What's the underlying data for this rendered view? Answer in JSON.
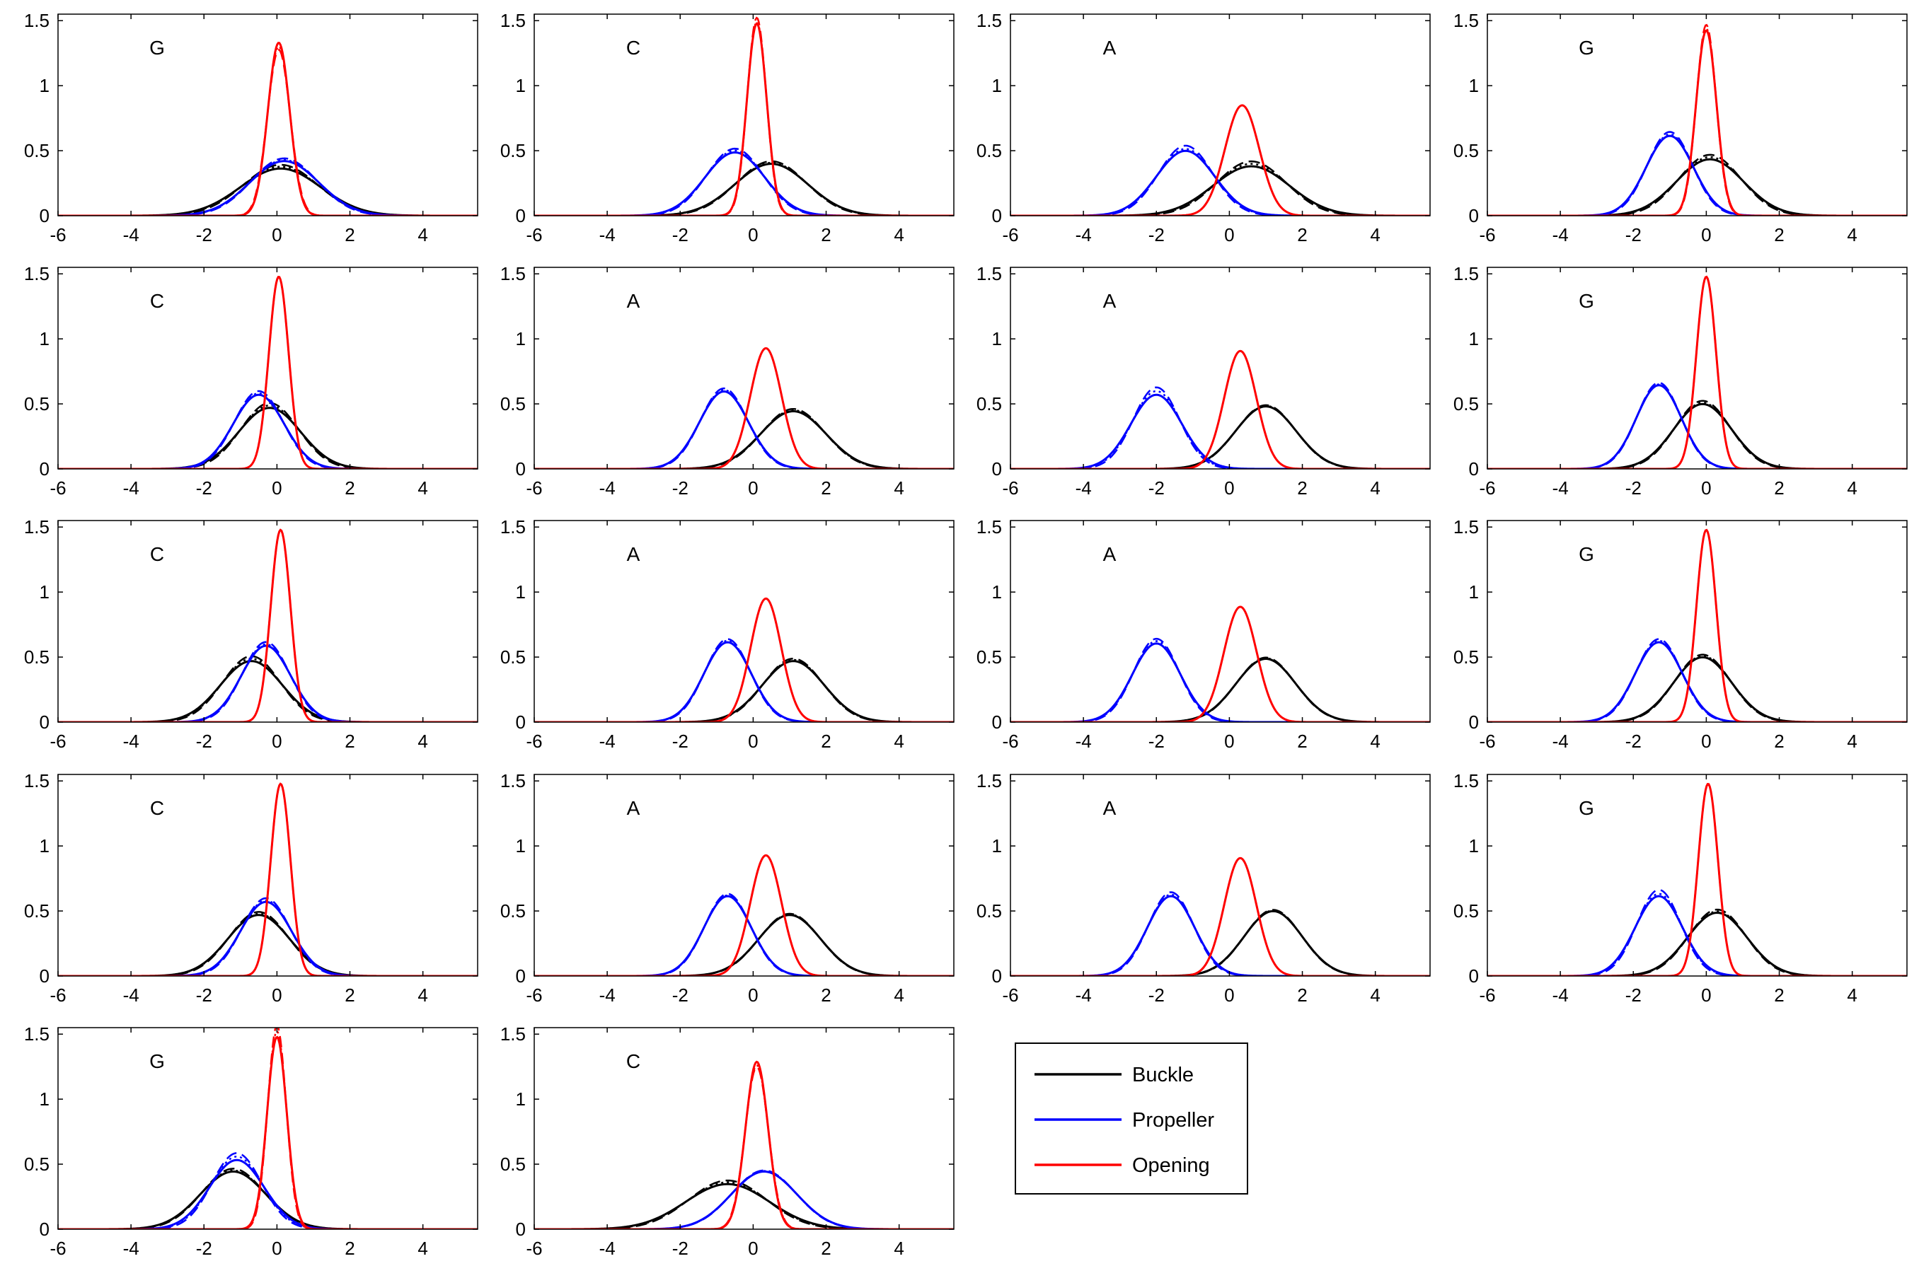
{
  "colors": {
    "buckle": "#000000",
    "propeller": "#0000ff",
    "opening": "#ff0000"
  },
  "legend": {
    "items": [
      {
        "label": "Buckle",
        "color": "#000000"
      },
      {
        "label": "Propeller",
        "color": "#0000ff"
      },
      {
        "label": "Opening",
        "color": "#ff0000"
      }
    ]
  },
  "chart_data": [
    {
      "type": "line",
      "label": "G",
      "xlim": [
        -6,
        5.5
      ],
      "ylim": [
        0,
        1.55
      ],
      "xticks": [
        -6,
        -4,
        -2,
        0,
        2,
        4
      ],
      "yticks": [
        0,
        0.5,
        1,
        1.5
      ],
      "series": [
        {
          "name": "Buckle",
          "mean": 0.1,
          "sd": 1.1,
          "variants": [
            1.0,
            1.08,
            1.04
          ]
        },
        {
          "name": "Propeller",
          "mean": 0.2,
          "sd": 0.95,
          "variants": [
            1.0,
            1.05,
            1.02
          ]
        },
        {
          "name": "Opening",
          "mean": 0.05,
          "sd": 0.3,
          "variants": [
            1.0,
            0.96,
            0.98
          ]
        }
      ]
    },
    {
      "type": "line",
      "label": "C",
      "xlim": [
        -6,
        5.5
      ],
      "ylim": [
        0,
        1.55
      ],
      "xticks": [
        -6,
        -4,
        -2,
        0,
        2,
        4
      ],
      "yticks": [
        0,
        0.5,
        1,
        1.5
      ],
      "series": [
        {
          "name": "Buckle",
          "mean": 0.5,
          "sd": 1.0,
          "variants": [
            1.0,
            1.05,
            1.02
          ]
        },
        {
          "name": "Propeller",
          "mean": -0.5,
          "sd": 0.82,
          "variants": [
            1.0,
            1.06,
            1.03
          ]
        },
        {
          "name": "Opening",
          "mean": 0.1,
          "sd": 0.27,
          "variants": [
            1.0,
            1.03,
            1.01
          ]
        }
      ]
    },
    {
      "type": "line",
      "label": "A",
      "xlim": [
        -6,
        5.5
      ],
      "ylim": [
        0,
        1.55
      ],
      "xticks": [
        -6,
        -4,
        -2,
        0,
        2,
        4
      ],
      "yticks": [
        0,
        0.5,
        1,
        1.5
      ],
      "series": [
        {
          "name": "Buckle",
          "mean": 0.6,
          "sd": 1.05,
          "variants": [
            1.0,
            1.1,
            1.05
          ]
        },
        {
          "name": "Propeller",
          "mean": -1.2,
          "sd": 0.8,
          "variants": [
            1.0,
            1.08,
            1.03
          ]
        },
        {
          "name": "Opening",
          "mean": 0.35,
          "sd": 0.47,
          "variants": [
            1.0,
            1.0,
            1.0
          ]
        }
      ]
    },
    {
      "type": "line",
      "label": "G",
      "xlim": [
        -6,
        5.5
      ],
      "ylim": [
        0,
        1.55
      ],
      "xticks": [
        -6,
        -4,
        -2,
        0,
        2,
        4
      ],
      "yticks": [
        0,
        0.5,
        1,
        1.5
      ],
      "series": [
        {
          "name": "Buckle",
          "mean": 0.1,
          "sd": 0.92,
          "variants": [
            1.0,
            1.08,
            1.04
          ]
        },
        {
          "name": "Propeller",
          "mean": -1.0,
          "sd": 0.65,
          "variants": [
            1.0,
            1.05,
            1.02
          ]
        },
        {
          "name": "Opening",
          "mean": 0.0,
          "sd": 0.28,
          "variants": [
            1.0,
            1.03,
            1.01
          ]
        }
      ]
    },
    {
      "type": "line",
      "label": "C",
      "xlim": [
        -6,
        5.5
      ],
      "ylim": [
        0,
        1.55
      ],
      "xticks": [
        -6,
        -4,
        -2,
        0,
        2,
        4
      ],
      "yticks": [
        0,
        0.5,
        1,
        1.5
      ],
      "series": [
        {
          "name": "Buckle",
          "mean": -0.2,
          "sd": 0.85,
          "variants": [
            1.0,
            1.08,
            1.04
          ]
        },
        {
          "name": "Propeller",
          "mean": -0.5,
          "sd": 0.7,
          "variants": [
            1.0,
            1.05,
            1.02
          ]
        },
        {
          "name": "Opening",
          "mean": 0.05,
          "sd": 0.27,
          "variants": [
            1.0,
            1.0,
            1.0
          ]
        }
      ]
    },
    {
      "type": "line",
      "label": "A",
      "xlim": [
        -6,
        5.5
      ],
      "ylim": [
        0,
        1.55
      ],
      "xticks": [
        -6,
        -4,
        -2,
        0,
        2,
        4
      ],
      "yticks": [
        0,
        0.5,
        1,
        1.5
      ],
      "series": [
        {
          "name": "Buckle",
          "mean": 1.1,
          "sd": 0.9,
          "variants": [
            1.0,
            1.04,
            1.02
          ]
        },
        {
          "name": "Propeller",
          "mean": -0.8,
          "sd": 0.67,
          "variants": [
            1.0,
            1.04,
            1.02
          ]
        },
        {
          "name": "Opening",
          "mean": 0.35,
          "sd": 0.43,
          "variants": [
            1.0,
            1.0,
            1.0
          ]
        }
      ]
    },
    {
      "type": "line",
      "label": "A",
      "xlim": [
        -6,
        5.5
      ],
      "ylim": [
        0,
        1.55
      ],
      "xticks": [
        -6,
        -4,
        -2,
        0,
        2,
        4
      ],
      "yticks": [
        0,
        0.5,
        1,
        1.5
      ],
      "series": [
        {
          "name": "Buckle",
          "mean": 1.0,
          "sd": 0.83,
          "variants": [
            1.0,
            1.02,
            1.01
          ]
        },
        {
          "name": "Propeller",
          "mean": -2.0,
          "sd": 0.7,
          "variants": [
            1.0,
            1.1,
            1.05
          ]
        },
        {
          "name": "Opening",
          "mean": 0.3,
          "sd": 0.44,
          "variants": [
            1.0,
            1.0,
            1.0
          ]
        }
      ]
    },
    {
      "type": "line",
      "label": "G",
      "xlim": [
        -6,
        5.5
      ],
      "ylim": [
        0,
        1.55
      ],
      "xticks": [
        -6,
        -4,
        -2,
        0,
        2,
        4
      ],
      "yticks": [
        0,
        0.5,
        1,
        1.5
      ],
      "series": [
        {
          "name": "Buckle",
          "mean": -0.1,
          "sd": 0.8,
          "variants": [
            1.0,
            1.05,
            1.02
          ]
        },
        {
          "name": "Propeller",
          "mean": -1.3,
          "sd": 0.62,
          "variants": [
            1.0,
            1.03,
            1.01
          ]
        },
        {
          "name": "Opening",
          "mean": 0.0,
          "sd": 0.27,
          "variants": [
            1.0,
            1.0,
            1.0
          ]
        }
      ]
    },
    {
      "type": "line",
      "label": "C",
      "xlim": [
        -6,
        5.5
      ],
      "ylim": [
        0,
        1.55
      ],
      "xticks": [
        -6,
        -4,
        -2,
        0,
        2,
        4
      ],
      "yticks": [
        0,
        0.5,
        1,
        1.5
      ],
      "series": [
        {
          "name": "Buckle",
          "mean": -0.7,
          "sd": 0.85,
          "variants": [
            1.0,
            1.08,
            1.04
          ]
        },
        {
          "name": "Propeller",
          "mean": -0.3,
          "sd": 0.68,
          "variants": [
            1.0,
            1.05,
            1.02
          ]
        },
        {
          "name": "Opening",
          "mean": 0.1,
          "sd": 0.27,
          "variants": [
            1.0,
            1.0,
            1.0
          ]
        }
      ]
    },
    {
      "type": "line",
      "label": "A",
      "xlim": [
        -6,
        5.5
      ],
      "ylim": [
        0,
        1.55
      ],
      "xticks": [
        -6,
        -4,
        -2,
        0,
        2,
        4
      ],
      "yticks": [
        0,
        0.5,
        1,
        1.5
      ],
      "series": [
        {
          "name": "Buckle",
          "mean": 1.1,
          "sd": 0.85,
          "variants": [
            1.0,
            1.04,
            1.02
          ]
        },
        {
          "name": "Propeller",
          "mean": -0.7,
          "sd": 0.65,
          "variants": [
            1.0,
            1.04,
            1.02
          ]
        },
        {
          "name": "Opening",
          "mean": 0.35,
          "sd": 0.42,
          "variants": [
            1.0,
            1.0,
            1.0
          ]
        }
      ]
    },
    {
      "type": "line",
      "label": "A",
      "xlim": [
        -6,
        5.5
      ],
      "ylim": [
        0,
        1.55
      ],
      "xticks": [
        -6,
        -4,
        -2,
        0,
        2,
        4
      ],
      "yticks": [
        0,
        0.5,
        1,
        1.5
      ],
      "series": [
        {
          "name": "Buckle",
          "mean": 1.0,
          "sd": 0.82,
          "variants": [
            1.0,
            1.02,
            1.01
          ]
        },
        {
          "name": "Propeller",
          "mean": -2.0,
          "sd": 0.66,
          "variants": [
            1.0,
            1.06,
            1.03
          ]
        },
        {
          "name": "Opening",
          "mean": 0.3,
          "sd": 0.45,
          "variants": [
            1.0,
            1.0,
            1.0
          ]
        }
      ]
    },
    {
      "type": "line",
      "label": "G",
      "xlim": [
        -6,
        5.5
      ],
      "ylim": [
        0,
        1.55
      ],
      "xticks": [
        -6,
        -4,
        -2,
        0,
        2,
        4
      ],
      "yticks": [
        0,
        0.5,
        1,
        1.5
      ],
      "series": [
        {
          "name": "Buckle",
          "mean": -0.1,
          "sd": 0.8,
          "variants": [
            1.0,
            1.04,
            1.02
          ]
        },
        {
          "name": "Propeller",
          "mean": -1.3,
          "sd": 0.65,
          "variants": [
            1.0,
            1.04,
            1.02
          ]
        },
        {
          "name": "Opening",
          "mean": 0.0,
          "sd": 0.27,
          "variants": [
            1.0,
            1.0,
            1.0
          ]
        }
      ]
    },
    {
      "type": "line",
      "label": "C",
      "xlim": [
        -6,
        5.5
      ],
      "ylim": [
        0,
        1.55
      ],
      "xticks": [
        -6,
        -4,
        -2,
        0,
        2,
        4
      ],
      "yticks": [
        0,
        0.5,
        1,
        1.5
      ],
      "series": [
        {
          "name": "Buckle",
          "mean": -0.5,
          "sd": 0.85,
          "variants": [
            1.0,
            1.05,
            1.02
          ]
        },
        {
          "name": "Propeller",
          "mean": -0.3,
          "sd": 0.7,
          "variants": [
            1.0,
            1.05,
            1.02
          ]
        },
        {
          "name": "Opening",
          "mean": 0.1,
          "sd": 0.27,
          "variants": [
            1.0,
            1.0,
            1.0
          ]
        }
      ]
    },
    {
      "type": "line",
      "label": "A",
      "xlim": [
        -6,
        5.5
      ],
      "ylim": [
        0,
        1.55
      ],
      "xticks": [
        -6,
        -4,
        -2,
        0,
        2,
        4
      ],
      "yticks": [
        0,
        0.5,
        1,
        1.5
      ],
      "series": [
        {
          "name": "Buckle",
          "mean": 1.0,
          "sd": 0.85,
          "variants": [
            1.0,
            1.02,
            1.01
          ]
        },
        {
          "name": "Propeller",
          "mean": -0.7,
          "sd": 0.65,
          "variants": [
            1.0,
            1.03,
            1.01
          ]
        },
        {
          "name": "Opening",
          "mean": 0.35,
          "sd": 0.43,
          "variants": [
            1.0,
            1.0,
            1.0
          ]
        }
      ]
    },
    {
      "type": "line",
      "label": "A",
      "xlim": [
        -6,
        5.5
      ],
      "ylim": [
        0,
        1.55
      ],
      "xticks": [
        -6,
        -4,
        -2,
        0,
        2,
        4
      ],
      "yticks": [
        0,
        0.5,
        1,
        1.5
      ],
      "series": [
        {
          "name": "Buckle",
          "mean": 1.2,
          "sd": 0.8,
          "variants": [
            1.0,
            1.02,
            1.01
          ]
        },
        {
          "name": "Propeller",
          "mean": -1.6,
          "sd": 0.65,
          "variants": [
            1.0,
            1.05,
            1.02
          ]
        },
        {
          "name": "Opening",
          "mean": 0.3,
          "sd": 0.44,
          "variants": [
            1.0,
            1.0,
            1.0
          ]
        }
      ]
    },
    {
      "type": "line",
      "label": "G",
      "xlim": [
        -6,
        5.5
      ],
      "ylim": [
        0,
        1.55
      ],
      "xticks": [
        -6,
        -4,
        -2,
        0,
        2,
        4
      ],
      "yticks": [
        0,
        0.5,
        1,
        1.5
      ],
      "series": [
        {
          "name": "Buckle",
          "mean": 0.3,
          "sd": 0.82,
          "variants": [
            1.0,
            1.05,
            1.02
          ]
        },
        {
          "name": "Propeller",
          "mean": -1.3,
          "sd": 0.65,
          "variants": [
            1.0,
            1.08,
            1.03
          ]
        },
        {
          "name": "Opening",
          "mean": 0.05,
          "sd": 0.27,
          "variants": [
            1.0,
            1.0,
            1.0
          ]
        }
      ]
    },
    {
      "type": "line",
      "label": "G",
      "xlim": [
        -6,
        5.5
      ],
      "ylim": [
        0,
        1.55
      ],
      "xticks": [
        -6,
        -4,
        -2,
        0,
        2,
        4
      ],
      "yticks": [
        0,
        0.5,
        1,
        1.5
      ],
      "series": [
        {
          "name": "Buckle",
          "mean": -1.2,
          "sd": 0.9,
          "variants": [
            1.0,
            1.05,
            1.02
          ]
        },
        {
          "name": "Propeller",
          "mean": -1.1,
          "sd": 0.75,
          "variants": [
            1.0,
            1.1,
            1.05
          ]
        },
        {
          "name": "Opening",
          "mean": 0.0,
          "sd": 0.27,
          "variants": [
            1.0,
            1.06,
            1.03
          ]
        }
      ]
    },
    {
      "type": "line",
      "label": "C",
      "xlim": [
        -6,
        5.5
      ],
      "ylim": [
        0,
        1.55
      ],
      "xticks": [
        -6,
        -4,
        -2,
        0,
        2,
        4
      ],
      "yticks": [
        0,
        0.5,
        1,
        1.5
      ],
      "series": [
        {
          "name": "Buckle",
          "mean": -0.7,
          "sd": 1.15,
          "variants": [
            1.0,
            1.08,
            1.04
          ]
        },
        {
          "name": "Propeller",
          "mean": 0.3,
          "sd": 0.9,
          "variants": [
            1.0,
            1.02,
            1.01
          ]
        },
        {
          "name": "Opening",
          "mean": 0.1,
          "sd": 0.31,
          "variants": [
            1.0,
            0.97,
            0.98
          ]
        }
      ]
    }
  ]
}
